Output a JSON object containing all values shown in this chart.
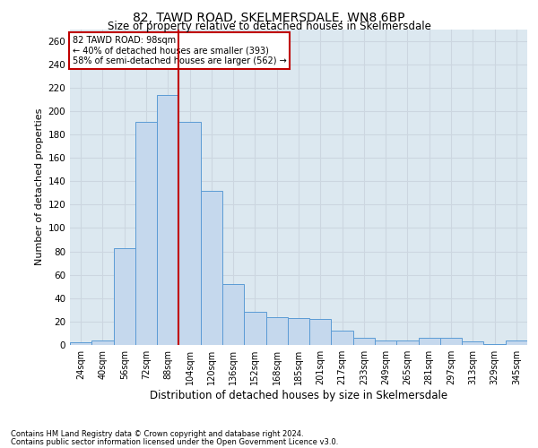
{
  "title1": "82, TAWD ROAD, SKELMERSDALE, WN8 6BP",
  "title2": "Size of property relative to detached houses in Skelmersdale",
  "xlabel": "Distribution of detached houses by size in Skelmersdale",
  "ylabel": "Number of detached properties",
  "footnote1": "Contains HM Land Registry data © Crown copyright and database right 2024.",
  "footnote2": "Contains public sector information licensed under the Open Government Licence v3.0.",
  "annotation_line1": "82 TAWD ROAD: 98sqm",
  "annotation_line2": "← 40% of detached houses are smaller (393)",
  "annotation_line3": "58% of semi-detached houses are larger (562) →",
  "bar_labels": [
    "24sqm",
    "40sqm",
    "56sqm",
    "72sqm",
    "88sqm",
    "104sqm",
    "120sqm",
    "136sqm",
    "152sqm",
    "168sqm",
    "185sqm",
    "201sqm",
    "217sqm",
    "233sqm",
    "249sqm",
    "265sqm",
    "281sqm",
    "297sqm",
    "313sqm",
    "329sqm",
    "345sqm"
  ],
  "bar_values": [
    2,
    4,
    83,
    191,
    214,
    191,
    132,
    52,
    28,
    24,
    23,
    22,
    12,
    6,
    4,
    4,
    6,
    6,
    3,
    1,
    4
  ],
  "bar_color": "#c5d8ed",
  "bar_edge_color": "#5b9bd5",
  "vline_color": "#c00000",
  "vline_x": 4.5,
  "ylim": [
    0,
    270
  ],
  "yticks": [
    0,
    20,
    40,
    60,
    80,
    100,
    120,
    140,
    160,
    180,
    200,
    220,
    240,
    260
  ],
  "grid_color": "#ccd6e0",
  "background_color": "#dce8f0",
  "annotation_box_color": "#ffffff",
  "annotation_box_edge": "#c00000",
  "title1_fontsize": 10,
  "title2_fontsize": 8.5,
  "ylabel_fontsize": 8,
  "xlabel_fontsize": 8.5,
  "tick_fontsize": 7,
  "footnote_fontsize": 6
}
